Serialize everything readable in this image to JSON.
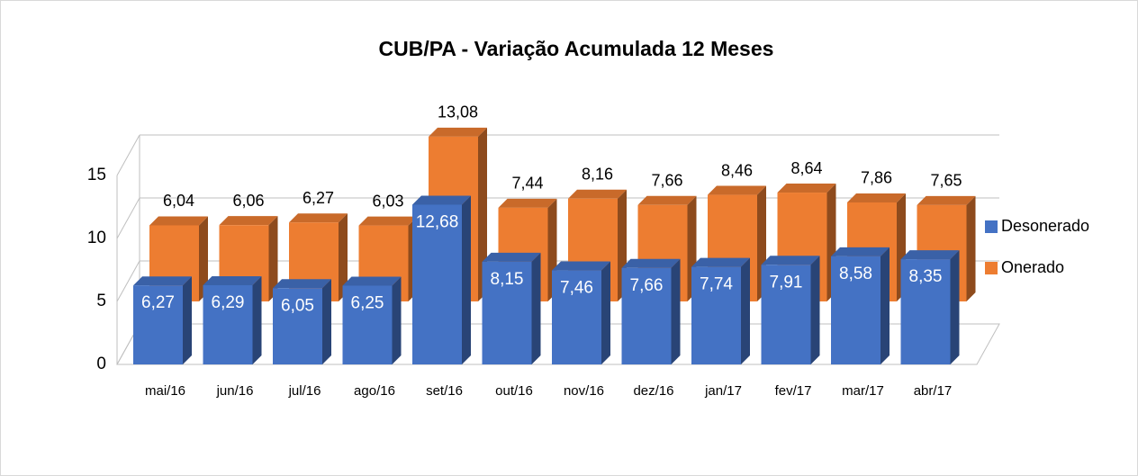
{
  "chart_data": {
    "type": "bar3d",
    "title": "CUB/PA - Variação Acumulada 12 Meses",
    "categories": [
      "mai/16",
      "jun/16",
      "jul/16",
      "ago/16",
      "set/16",
      "out/16",
      "nov/16",
      "dez/16",
      "jan/17",
      "fev/17",
      "mar/17",
      "abr/17"
    ],
    "series": [
      {
        "name": "Desonerado",
        "color": "#4472c4",
        "values": [
          6.27,
          6.29,
          6.05,
          6.25,
          12.68,
          8.15,
          7.46,
          7.66,
          7.74,
          7.91,
          8.58,
          8.35
        ],
        "value_labels": [
          "6,27",
          "6,29",
          "6,05",
          "6,25",
          "12,68",
          "8,15",
          "7,46",
          "7,66",
          "7,74",
          "7,91",
          "8,58",
          "8,35"
        ]
      },
      {
        "name": "Onerado",
        "color": "#ed7d31",
        "values": [
          6.04,
          6.06,
          6.27,
          6.03,
          13.08,
          7.44,
          8.16,
          7.66,
          8.46,
          8.64,
          7.86,
          7.65
        ],
        "value_labels": [
          "6,04",
          "6,06",
          "6,27",
          "6,03",
          "13,08",
          "7,44",
          "8,16",
          "7,66",
          "8,46",
          "8,64",
          "7,86",
          "7,65"
        ]
      }
    ],
    "ylim": [
      0,
      15
    ],
    "yticks": [
      0,
      5,
      10,
      15
    ],
    "grid": true,
    "legend": "right"
  }
}
